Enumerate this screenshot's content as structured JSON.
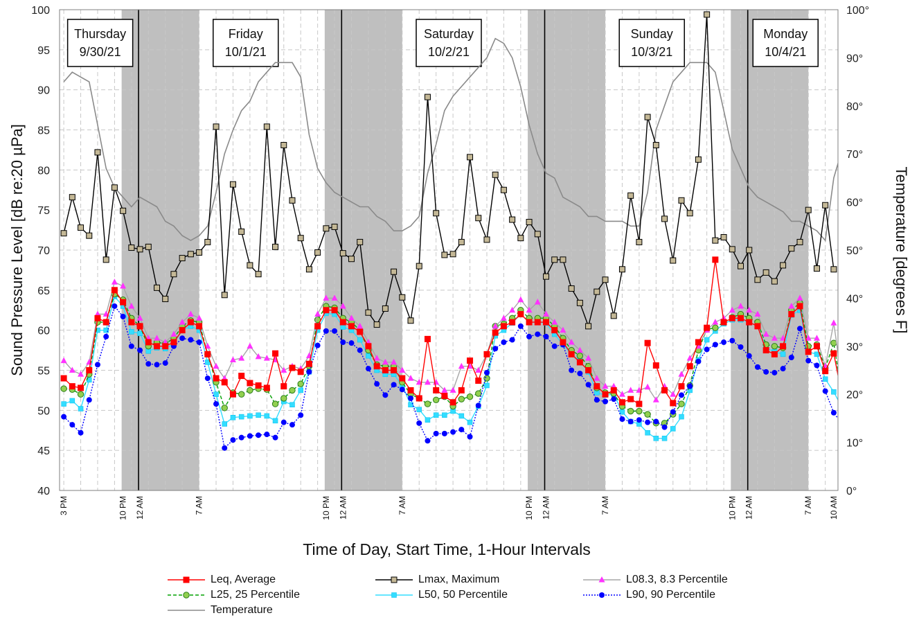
{
  "chart_data": {
    "type": "line",
    "xlabel": "Time of Day, Start Time, 1-Hour Intervals",
    "ylabel": "Sound Pressure Level [dB re:20 µPa]",
    "y2label": "Temperature  [degrees F]",
    "ylim": [
      40,
      100
    ],
    "y2lim": [
      0,
      100
    ],
    "yticks": [
      "40",
      "45",
      "50",
      "55",
      "60",
      "65",
      "70",
      "75",
      "80",
      "85",
      "90",
      "95",
      "100"
    ],
    "y2ticks": [
      "0°",
      "10°",
      "20°",
      "30°",
      "40°",
      "50°",
      "60°",
      "70°",
      "80°",
      "90°",
      "100°"
    ],
    "x_hours": 92,
    "x_tick_labels": [
      {
        "h": 0,
        "label": "3 PM"
      },
      {
        "h": 7,
        "label": "10 PM"
      },
      {
        "h": 9,
        "label": "12 AM"
      },
      {
        "h": 16,
        "label": "7 AM"
      },
      {
        "h": 31,
        "label": "10 PM"
      },
      {
        "h": 33,
        "label": "12 AM"
      },
      {
        "h": 40,
        "label": "7 AM"
      },
      {
        "h": 55,
        "label": "10 PM"
      },
      {
        "h": 57,
        "label": "12 AM"
      },
      {
        "h": 64,
        "label": "7 AM"
      },
      {
        "h": 79,
        "label": "10 PM"
      },
      {
        "h": 81,
        "label": "12 AM"
      },
      {
        "h": 88,
        "label": "7 AM"
      },
      {
        "h": 91,
        "label": "10 AM"
      }
    ],
    "night_bands": [
      [
        7,
        16
      ],
      [
        31,
        40
      ],
      [
        55,
        64
      ],
      [
        79,
        88
      ]
    ],
    "midnights": [
      9,
      33,
      57,
      81
    ],
    "day_labels": [
      {
        "name": "Thursday",
        "date": "9/30/21",
        "h": 4.3
      },
      {
        "name": "Friday",
        "date": "10/1/21",
        "h": 21.5
      },
      {
        "name": "Saturday",
        "date": "10/2/21",
        "h": 45.5
      },
      {
        "name": "Sunday",
        "date": "10/3/21",
        "h": 69.5
      },
      {
        "name": "Monday",
        "date": "10/4/21",
        "h": 85.3
      }
    ],
    "legend": {
      "position": "bottom",
      "columns": 3
    },
    "grid": true,
    "series": [
      {
        "name": "Leq, Average",
        "color": "#ff0000",
        "marker": "square",
        "line": "solid",
        "axis": "left",
        "values": [
          54.0,
          53.0,
          52.8,
          55.0,
          61.5,
          61.0,
          65.0,
          63.5,
          61.0,
          60.5,
          58.5,
          58.0,
          58.0,
          58.5,
          60.0,
          61.0,
          60.5,
          57.0,
          54.0,
          53.5,
          52.0,
          54.3,
          53.4,
          53.1,
          52.8,
          57.1,
          53.0,
          55.3,
          54.8,
          55.8,
          60.5,
          62.5,
          62.5,
          61.0,
          60.5,
          59.8,
          58.0,
          55.5,
          55.0,
          55.0,
          54.0,
          52.5,
          51.5,
          58.9,
          52.5,
          51.8,
          51.0,
          52.5,
          56.2,
          53.7,
          57.0,
          59.7,
          60.5,
          61.0,
          62.0,
          61.0,
          61.0,
          61.0,
          60.0,
          58.5,
          57.0,
          56.0,
          55.0,
          53.0,
          52.0,
          52.5,
          51.0,
          51.4,
          50.8,
          58.4,
          55.6,
          52.5,
          50.9,
          53.0,
          55.5,
          58.5,
          60.3,
          68.8,
          61.0,
          61.5,
          61.5,
          61.0,
          60.5,
          57.5,
          57.0,
          58.0,
          62.0,
          63.0,
          57.3,
          58.0,
          54.9,
          57.1,
          51.7
        ]
      },
      {
        "name": "Lmax, Maximum",
        "color": "#000000",
        "marker": "square-tan",
        "line": "solid",
        "axis": "left",
        "values": [
          72.1,
          76.6,
          72.8,
          71.8,
          82.2,
          68.8,
          77.8,
          74.9,
          70.3,
          70.1,
          70.4,
          65.3,
          63.9,
          67.0,
          69.0,
          69.5,
          69.7,
          71.0,
          85.4,
          64.4,
          78.2,
          72.3,
          68.1,
          67.0,
          85.4,
          70.4,
          83.1,
          76.2,
          71.5,
          67.6,
          69.7,
          72.7,
          72.9,
          69.6,
          68.9,
          71.0,
          62.2,
          60.7,
          62.7,
          67.3,
          64.1,
          61.2,
          68.0,
          89.1,
          74.6,
          69.4,
          69.5,
          71.0,
          81.6,
          74.0,
          71.3,
          79.4,
          77.5,
          73.8,
          71.5,
          73.5,
          72.0,
          66.7,
          68.8,
          68.8,
          65.2,
          63.4,
          60.5,
          64.8,
          66.3,
          61.8,
          67.6,
          76.8,
          71.0,
          86.6,
          83.1,
          73.9,
          68.7,
          76.2,
          74.6,
          81.3,
          99.4,
          71.2,
          71.6,
          70.1,
          68.0,
          70.0,
          66.3,
          67.2,
          66.1,
          68.1,
          70.2,
          71.0,
          75.0,
          67.7,
          75.6,
          67.6
        ]
      },
      {
        "name": "L08.3, 8.3 Percentile",
        "color": "#ff33ff",
        "marker": "triangle",
        "line": "solid-gray",
        "axis": "left",
        "values": [
          56.2,
          55.0,
          54.5,
          56.0,
          62.0,
          62.0,
          66.0,
          65.5,
          63.0,
          61.5,
          59.0,
          59.0,
          58.5,
          59.5,
          61.0,
          62.0,
          61.5,
          58.0,
          55.5,
          54.0,
          56.3,
          56.5,
          58.0,
          56.7,
          56.5,
          56.3,
          55.0,
          55.5,
          55.2,
          56.8,
          62.0,
          64.0,
          64.0,
          63.0,
          61.5,
          60.5,
          58.5,
          56.5,
          56.0,
          56.0,
          55.0,
          54.0,
          53.5,
          53.5,
          53.5,
          52.5,
          52.5,
          55.5,
          55.5,
          55.0,
          57.0,
          60.5,
          61.5,
          62.5,
          63.8,
          62.5,
          63.5,
          62.0,
          61.0,
          60.0,
          58.5,
          57.5,
          56.5,
          54.0,
          53.0,
          53.0,
          52.0,
          52.5,
          52.5,
          52.9,
          51.3,
          53.0,
          52.0,
          54.5,
          56.5,
          58.0,
          60.0,
          61.0,
          61.5,
          62.5,
          63.0,
          62.5,
          62.0,
          59.5,
          59.0,
          59.0,
          63.0,
          64.0,
          59.0,
          59.0,
          55.5,
          60.9,
          53.4
        ]
      },
      {
        "name": "L25, 25 Percentile",
        "color": "#00a000",
        "marker": "circle-green",
        "line": "dashed",
        "axis": "left",
        "values": [
          52.7,
          52.6,
          52.0,
          54.5,
          61.0,
          61.0,
          64.5,
          63.8,
          61.5,
          60.5,
          58.0,
          58.5,
          58.3,
          59.0,
          60.5,
          61.2,
          61.0,
          57.0,
          53.5,
          50.3,
          52.2,
          52.0,
          52.5,
          52.7,
          52.6,
          50.8,
          51.5,
          52.5,
          53.3,
          55.5,
          61.3,
          63.0,
          62.8,
          61.5,
          61.0,
          60.0,
          57.5,
          55.7,
          55.5,
          55.5,
          53.5,
          52.0,
          51.5,
          50.8,
          51.3,
          51.7,
          50.5,
          51.4,
          51.7,
          52.1,
          54.0,
          60.5,
          60.8,
          61.5,
          62.5,
          61.5,
          61.5,
          61.5,
          60.5,
          59.0,
          57.5,
          56.8,
          55.5,
          52.8,
          52.2,
          52.1,
          50.5,
          49.9,
          49.9,
          49.5,
          48.4,
          48.4,
          49.5,
          50.8,
          53.1,
          57.5,
          60.1,
          60.3,
          61.0,
          61.6,
          62.0,
          61.5,
          61.0,
          58.2,
          58.0,
          57.8,
          62.5,
          63.4,
          58.0,
          58.2,
          55.3,
          58.4,
          51.7
        ]
      },
      {
        "name": "L50, 50 Percentile",
        "color": "#00e0ff",
        "marker": "square-cyan",
        "line": "solid",
        "axis": "left",
        "values": [
          50.8,
          51.2,
          50.2,
          53.8,
          60.0,
          60.0,
          64.2,
          63.0,
          59.8,
          59.6,
          57.4,
          57.8,
          57.7,
          58.3,
          60.0,
          60.5,
          60.0,
          56.0,
          52.0,
          48.3,
          49.1,
          49.2,
          49.3,
          49.4,
          49.3,
          48.7,
          51.1,
          50.7,
          52.5,
          54.8,
          60.0,
          62.1,
          62.0,
          60.4,
          60.0,
          58.8,
          56.8,
          55.0,
          54.5,
          54.5,
          53.1,
          50.7,
          50.1,
          48.8,
          49.4,
          49.4,
          49.9,
          49.3,
          48.5,
          50.5,
          53.1,
          59.3,
          60.0,
          60.9,
          62.0,
          61.0,
          61.0,
          60.9,
          59.5,
          58.2,
          57.0,
          56.2,
          54.8,
          52.2,
          51.9,
          52.0,
          49.8,
          48.6,
          48.3,
          47.2,
          46.5,
          46.5,
          47.7,
          49.2,
          52.5,
          56.3,
          58.8,
          59.9,
          60.8,
          61.3,
          61.3,
          61.0,
          60.5,
          57.8,
          57.3,
          57.0,
          61.9,
          62.5,
          57.3,
          57.0,
          53.9,
          52.3,
          50.3
        ]
      },
      {
        "name": "L90, 90 Percentile",
        "color": "#0000ff",
        "marker": "circle-blue",
        "line": "dotted",
        "axis": "left",
        "values": [
          49.2,
          48.2,
          47.2,
          51.3,
          55.7,
          59.2,
          63.0,
          61.7,
          58.0,
          57.5,
          55.8,
          55.7,
          55.9,
          58.0,
          59.0,
          58.8,
          58.5,
          54.0,
          50.8,
          45.3,
          46.3,
          46.6,
          46.8,
          46.9,
          47.0,
          46.6,
          48.5,
          48.2,
          49.4,
          54.8,
          58.1,
          59.9,
          59.9,
          58.5,
          58.4,
          57.5,
          55.2,
          53.3,
          51.9,
          53.2,
          52.6,
          51.5,
          48.4,
          46.2,
          47.1,
          47.1,
          47.3,
          47.6,
          46.7,
          50.6,
          54.7,
          57.7,
          58.5,
          58.8,
          60.5,
          59.2,
          59.5,
          59.2,
          58.0,
          58.2,
          55.0,
          54.6,
          53.2,
          51.3,
          51.1,
          51.4,
          48.9,
          48.6,
          48.8,
          48.5,
          48.6,
          47.9,
          49.8,
          51.9,
          53.0,
          56.1,
          57.6,
          58.2,
          58.5,
          58.7,
          57.9,
          56.8,
          55.4,
          54.8,
          54.7,
          55.2,
          56.6,
          60.2,
          56.2,
          55.6,
          52.4,
          49.7,
          48.3
        ]
      },
      {
        "name": "Temperature",
        "color": "#808080",
        "marker": "none",
        "line": "solid-thin",
        "axis": "right",
        "values": [
          85,
          87,
          86,
          85,
          76,
          67,
          63,
          61,
          59,
          61,
          60,
          59,
          56,
          55,
          53,
          52,
          53,
          55,
          62,
          70,
          75,
          79,
          81,
          85,
          87,
          89,
          89,
          89,
          86,
          74,
          67,
          64,
          62,
          61,
          60,
          59,
          59,
          57,
          56,
          54,
          54,
          55,
          57,
          66,
          72,
          79,
          82,
          84,
          86,
          88,
          90,
          94,
          93,
          90,
          84,
          76,
          70,
          66,
          65,
          61,
          60,
          59,
          57,
          57,
          56,
          56,
          56,
          55,
          55,
          62,
          75,
          80,
          85,
          87,
          89,
          89,
          89,
          87,
          79,
          71,
          67,
          63,
          61,
          60,
          59,
          58,
          56,
          56,
          55,
          54,
          52,
          65,
          71
        ]
      }
    ]
  }
}
